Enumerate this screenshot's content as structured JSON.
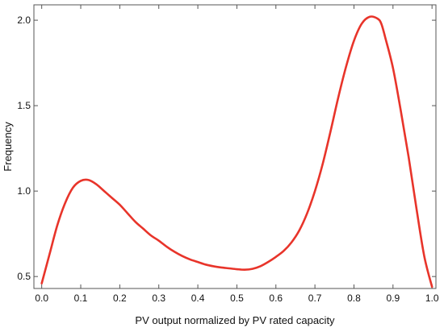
{
  "chart_data": {
    "type": "line",
    "title": "",
    "xlabel": "PV output normalized by PV rated capacity",
    "ylabel": "Frequency",
    "xlim": [
      -0.02,
      1.01
    ],
    "ylim": [
      0.43,
      2.09
    ],
    "xticks": [
      "0.0",
      "0.1",
      "0.2",
      "0.3",
      "0.4",
      "0.5",
      "0.6",
      "0.7",
      "0.8",
      "0.9",
      "1.0"
    ],
    "yticks": [
      "0.5",
      "1.0",
      "1.5",
      "2.0"
    ],
    "grid": false,
    "series": [
      {
        "color": "#e8342a",
        "x": [
          0.0,
          0.02,
          0.04,
          0.06,
          0.08,
          0.1,
          0.12,
          0.14,
          0.16,
          0.18,
          0.2,
          0.22,
          0.24,
          0.26,
          0.28,
          0.3,
          0.32,
          0.34,
          0.36,
          0.38,
          0.4,
          0.42,
          0.44,
          0.46,
          0.48,
          0.5,
          0.52,
          0.54,
          0.56,
          0.58,
          0.6,
          0.62,
          0.64,
          0.66,
          0.68,
          0.7,
          0.72,
          0.74,
          0.76,
          0.78,
          0.8,
          0.82,
          0.84,
          0.86,
          0.87,
          0.88,
          0.9,
          0.92,
          0.94,
          0.96,
          0.98,
          1.0
        ],
        "y": [
          0.46,
          0.63,
          0.8,
          0.93,
          1.02,
          1.06,
          1.065,
          1.04,
          1.0,
          0.96,
          0.92,
          0.87,
          0.82,
          0.78,
          0.74,
          0.71,
          0.675,
          0.645,
          0.62,
          0.6,
          0.585,
          0.57,
          0.56,
          0.553,
          0.548,
          0.543,
          0.54,
          0.545,
          0.56,
          0.585,
          0.615,
          0.65,
          0.7,
          0.77,
          0.87,
          1.0,
          1.16,
          1.35,
          1.55,
          1.73,
          1.88,
          1.98,
          2.02,
          2.01,
          1.98,
          1.9,
          1.72,
          1.47,
          1.2,
          0.9,
          0.62,
          0.44
        ]
      }
    ]
  }
}
